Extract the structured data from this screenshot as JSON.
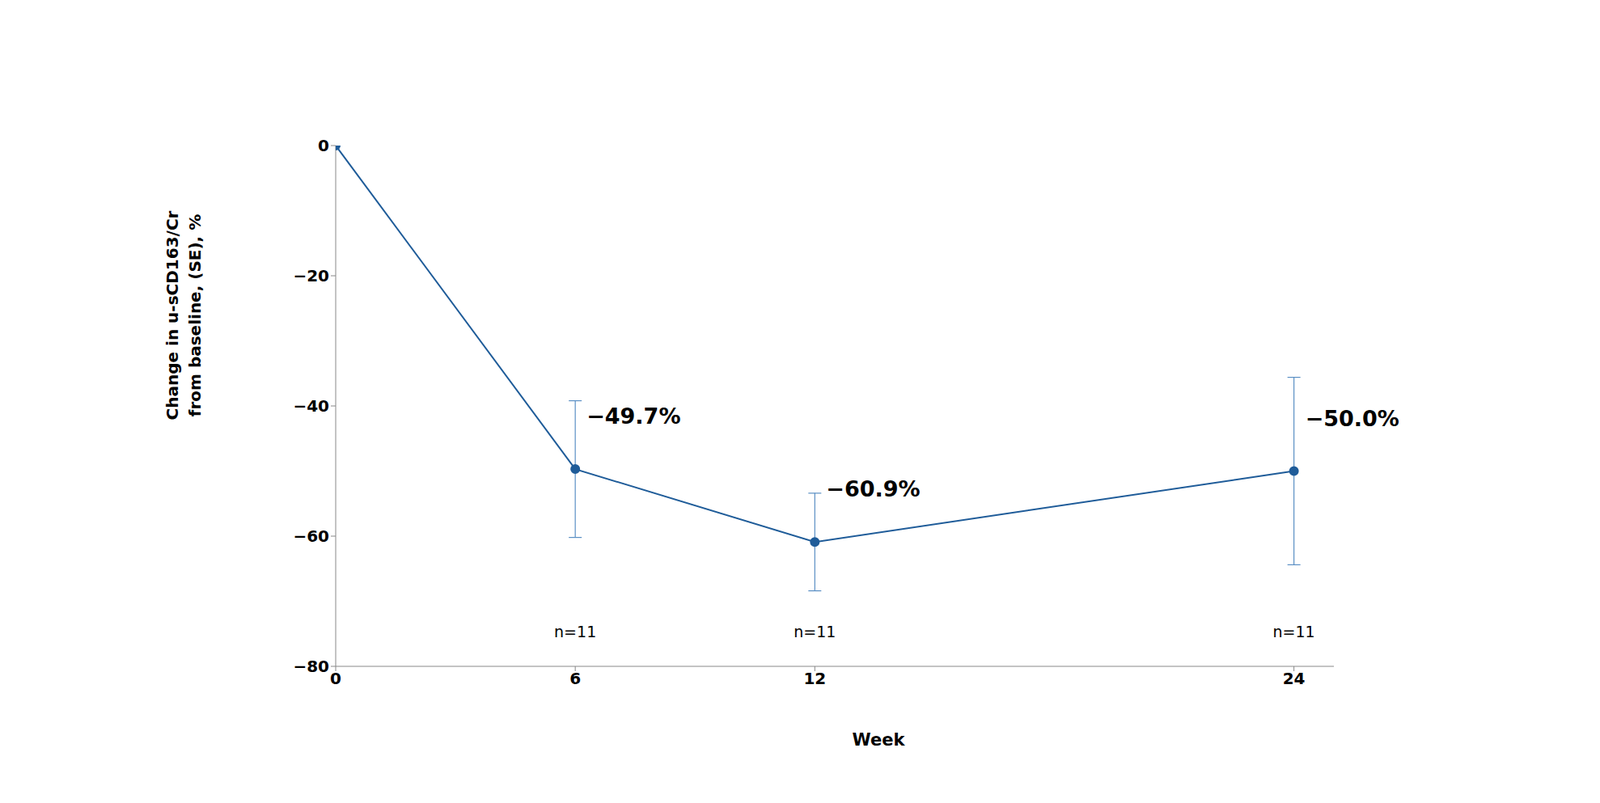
{
  "chart_data": {
    "type": "line",
    "xlabel": "Week",
    "ylabel": "Change in u-sCD163/Cr\nfrom baseline, (SE), %",
    "x": [
      0,
      6,
      12,
      24
    ],
    "values": [
      0,
      -49.7,
      -60.9,
      -50.0
    ],
    "value_labels": [
      null,
      "−49.7%",
      "−60.9%",
      "−50.0%"
    ],
    "se": [
      null,
      10.5,
      7.5,
      14.4
    ],
    "annotations": [
      null,
      "n=11",
      "n=11",
      "n=11"
    ],
    "xlim": [
      0,
      25
    ],
    "xticks": [
      0,
      6,
      12,
      24
    ],
    "ylim": [
      -80,
      0
    ],
    "yticks": [
      0,
      {
        "value": -20,
        "label": "−20"
      },
      {
        "value": -40,
        "label": "−40"
      },
      {
        "value": -60,
        "label": "−60"
      },
      {
        "value": -80,
        "label": "−80"
      }
    ],
    "color": "#1f5c99",
    "marker": "circle",
    "grid": false,
    "data_labels": true
  }
}
